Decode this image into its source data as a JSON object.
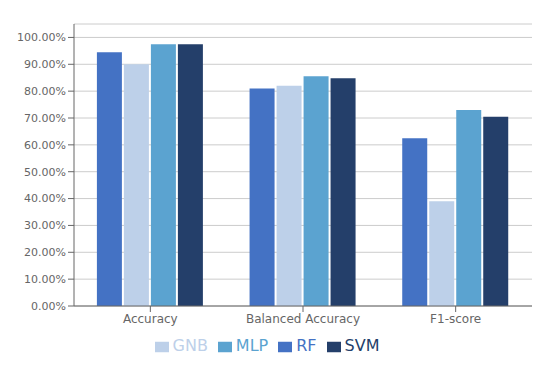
{
  "chart_data": {
    "type": "bar",
    "categories": [
      "Accuracy",
      "Balanced Accuracy",
      "F1-score"
    ],
    "series": [
      {
        "name": "RF",
        "color": "#4472C4",
        "values": [
          0.945,
          0.81,
          0.625
        ]
      },
      {
        "name": "GNB",
        "color": "#BDD0E9",
        "values": [
          0.9,
          0.82,
          0.39
        ]
      },
      {
        "name": "MLP",
        "color": "#5BA3D0",
        "values": [
          0.975,
          0.855,
          0.73
        ]
      },
      {
        "name": "SVM",
        "color": "#243F6A",
        "values": [
          0.975,
          0.848,
          0.705
        ]
      }
    ],
    "ylim": [
      0.0,
      1.05
    ],
    "yticks": [
      {
        "value": 0.0,
        "label": "0.00%"
      },
      {
        "value": 0.1,
        "label": "10.00%"
      },
      {
        "value": 0.2,
        "label": "20.00%"
      },
      {
        "value": 0.3,
        "label": "30.00%"
      },
      {
        "value": 0.4,
        "label": "40.00%"
      },
      {
        "value": 0.5,
        "label": "50.00%"
      },
      {
        "value": 0.6,
        "label": "60.00%"
      },
      {
        "value": 0.7,
        "label": "70.00%"
      },
      {
        "value": 0.8,
        "label": "80.00%"
      },
      {
        "value": 0.9,
        "label": "90.00%"
      },
      {
        "value": 1.0,
        "label": "100.00%"
      }
    ],
    "grid": true,
    "legend": "bottom"
  }
}
